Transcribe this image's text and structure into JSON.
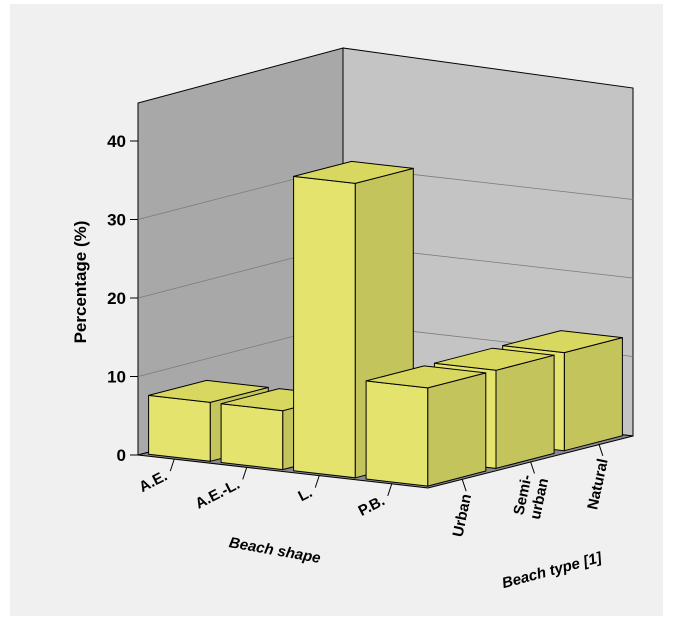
{
  "chart_data": {
    "type": "bar",
    "subtype": "3d-bar",
    "title": "",
    "ylabel": "Percentage (%)",
    "xlabel": "Beach shape",
    "zlabel": "Beach type [1]",
    "ylim": [
      0,
      40
    ],
    "yticks": [
      "0",
      "10",
      "20",
      "30",
      "40"
    ],
    "categories": [
      "A.E.",
      "A.E.-L.",
      "L.",
      "P.B."
    ],
    "depth_categories": [
      "Urban",
      "Semi-\nurban",
      "Natural"
    ],
    "series": [
      {
        "name": "Urban",
        "values": [
          7.5,
          7.5,
          37.5,
          12.5
        ]
      },
      {
        "name": "Semi-\nurban",
        "values": [
          0,
          0,
          0,
          12.5
        ]
      },
      {
        "name": "Natural",
        "values": [
          0,
          0,
          0,
          12.5
        ]
      }
    ],
    "bar_color": "#e3e36e",
    "wall_color": "#c0c0c0",
    "background_color": "#f0f0f0"
  }
}
